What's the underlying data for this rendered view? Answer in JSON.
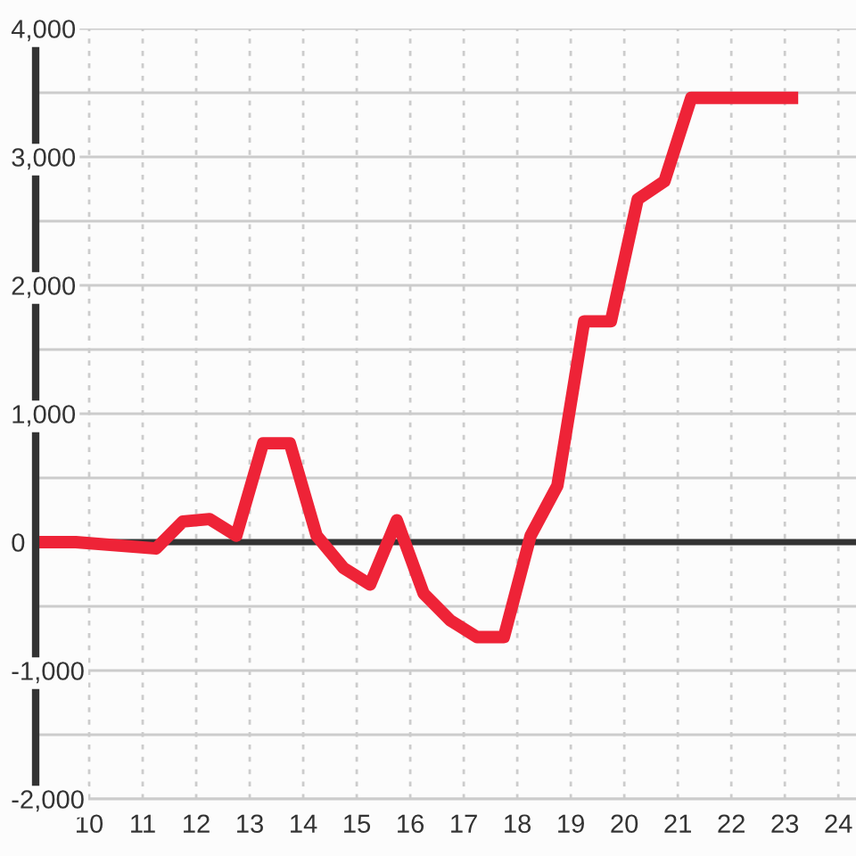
{
  "chart_data": {
    "type": "line",
    "x": [
      9,
      9.75,
      11.25,
      11.75,
      12.25,
      12.75,
      13.25,
      13.75,
      14.25,
      14.75,
      15.25,
      15.75,
      16.25,
      16.75,
      17.25,
      17.75,
      18.25,
      18.75,
      19.25,
      19.75,
      20.25,
      20.75,
      21.25,
      23.25
    ],
    "series": [
      {
        "color": "#ee2337",
        "values": [
          0,
          0,
          -50,
          160,
          180,
          50,
          770,
          770,
          50,
          -200,
          -330,
          170,
          -400,
          -610,
          -740,
          -740,
          50,
          440,
          1720,
          1720,
          2670,
          2810,
          3460,
          3460
        ]
      }
    ],
    "xlim": [
      9,
      24.33
    ],
    "ylim": [
      -2000,
      4000
    ],
    "xticks": [
      10,
      11,
      12,
      13,
      14,
      15,
      16,
      17,
      18,
      19,
      20,
      21,
      22,
      23,
      24
    ],
    "yticks": [
      {
        "value": -2000,
        "label": "-2,000"
      },
      {
        "value": -1500,
        "label": null
      },
      {
        "value": -1000,
        "label": "-1,000"
      },
      {
        "value": -500,
        "label": null
      },
      {
        "value": 0,
        "label": "0"
      },
      {
        "value": 500,
        "label": null
      },
      {
        "value": 1000,
        "label": "1,000"
      },
      {
        "value": 1500,
        "label": null
      },
      {
        "value": 2000,
        "label": "2,000"
      },
      {
        "value": 2500,
        "label": null
      },
      {
        "value": 3000,
        "label": "3,000"
      },
      {
        "value": 3500,
        "label": null
      },
      {
        "value": 4000,
        "label": "4,000"
      }
    ],
    "grid": true,
    "marker": "none",
    "line_style": "solid",
    "ref_lines": [
      {
        "axis": "y",
        "value": 0,
        "color": "#333333"
      }
    ]
  }
}
